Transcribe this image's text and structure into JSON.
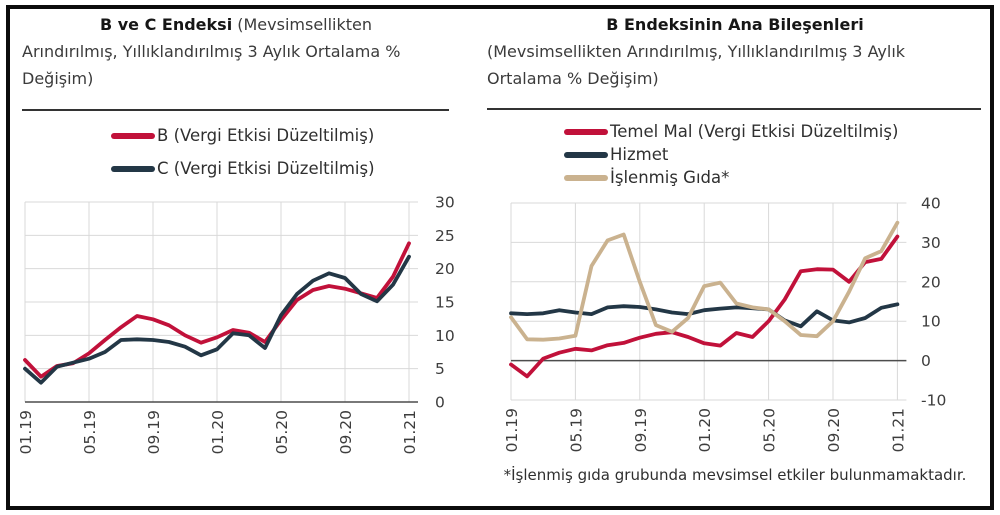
{
  "footnote": "*İşlenmiş gıda grubunda mevsimsel etkiler bulunmamaktadır.",
  "colors": {
    "red": "#c1113a",
    "navy": "#233746",
    "tan": "#cab28f",
    "gridline": "#d9d9d9",
    "axis": "#4d4d4d",
    "tick_text": "#3d3d3d"
  },
  "chart_data": [
    {
      "type": "line",
      "title": "B ve C Endeksi (Mevsimsellikten Arındırılmış, Yıllıklandırılmış 3 Aylık Ortalama % Değişim)",
      "title_bold": "B ve C Endeksi",
      "title_line1_rest": " (Mevsimsellikten",
      "title_line2": "Arındırılmış, Yıllıklandırılmış 3 Aylık Ortalama %",
      "title_line3": "Değişim)",
      "x_tick_labels": [
        "01.19",
        "05.19",
        "09.19",
        "01.20",
        "05.20",
        "09.20",
        "01.21"
      ],
      "x_frequency": "monthly, tick every 4 months",
      "ylim": [
        0,
        30
      ],
      "ystep": 5,
      "y_axis_side": "right",
      "grid": true,
      "legend_position": "top",
      "series": [
        {
          "name": "B (Vergi Etkisi Düzeltilmiş)",
          "color": "#c1113a",
          "values": [
            6.3,
            3.8,
            5.4,
            5.8,
            7.3,
            9.3,
            11.2,
            12.9,
            12.4,
            11.5,
            10.0,
            8.9,
            9.7,
            10.8,
            10.4,
            9.0,
            12.3,
            15.3,
            16.8,
            17.4,
            17.0,
            16.3,
            15.6,
            18.8,
            23.8
          ]
        },
        {
          "name": "C (Vergi Etkisi Düzeltilmiş)",
          "color": "#233746",
          "values": [
            5.0,
            2.9,
            5.3,
            5.9,
            6.5,
            7.5,
            9.3,
            9.4,
            9.3,
            9.0,
            8.3,
            7.0,
            7.9,
            10.3,
            10.0,
            8.1,
            13.0,
            16.2,
            18.2,
            19.3,
            18.6,
            16.2,
            15.1,
            17.6,
            21.8
          ]
        }
      ]
    },
    {
      "type": "line",
      "title": "B Endeksinin Ana Bileşenleri (Mevsimsellikten Arındırılmış, Yıllıklandırılmış 3 Aylık Ortalama % Değişim)",
      "title_bold": "B Endeksinin Ana Bileşenleri",
      "title_line1_rest": "",
      "title_line2": "(Mevsimsellikten Arındırılmış, Yıllıklandırılmış 3 Aylık",
      "title_line3": "Ortalama % Değişim)",
      "x_tick_labels": [
        "01.19",
        "05.19",
        "09.19",
        "01.20",
        "05.20",
        "09.20",
        "01.21"
      ],
      "x_frequency": "monthly, tick every 4 months",
      "ylim": [
        -10,
        40
      ],
      "ystep": 10,
      "y_axis_side": "right",
      "grid": true,
      "zero_line": true,
      "legend_position": "top",
      "series": [
        {
          "name": "Temel Mal (Vergi Etkisi Düzeltilmiş)",
          "color": "#c1113a",
          "values": [
            -1.0,
            -4.0,
            0.5,
            2.0,
            3.0,
            2.6,
            3.9,
            4.5,
            5.8,
            6.8,
            7.2,
            6.0,
            4.4,
            3.8,
            7.0,
            6.0,
            10.0,
            15.5,
            22.7,
            23.2,
            23.1,
            20.0,
            25.0,
            25.8,
            31.5
          ]
        },
        {
          "name": "Hizmet",
          "color": "#233746",
          "values": [
            12.0,
            11.8,
            12.0,
            12.8,
            12.2,
            11.8,
            13.5,
            13.8,
            13.6,
            13.0,
            12.2,
            11.8,
            12.8,
            13.2,
            13.5,
            13.3,
            13.0,
            10.2,
            8.7,
            12.5,
            10.2,
            9.7,
            10.8,
            13.4,
            14.3
          ]
        },
        {
          "name": "İşlenmiş Gıda*",
          "color": "#cab28f",
          "values": [
            11.0,
            5.4,
            5.3,
            5.6,
            6.3,
            24.0,
            30.5,
            32.0,
            20.0,
            9.0,
            7.3,
            10.8,
            18.9,
            19.8,
            14.5,
            13.5,
            13.0,
            10.0,
            6.5,
            6.2,
            10.0,
            17.5,
            26.0,
            27.8,
            35.0
          ]
        }
      ]
    }
  ]
}
